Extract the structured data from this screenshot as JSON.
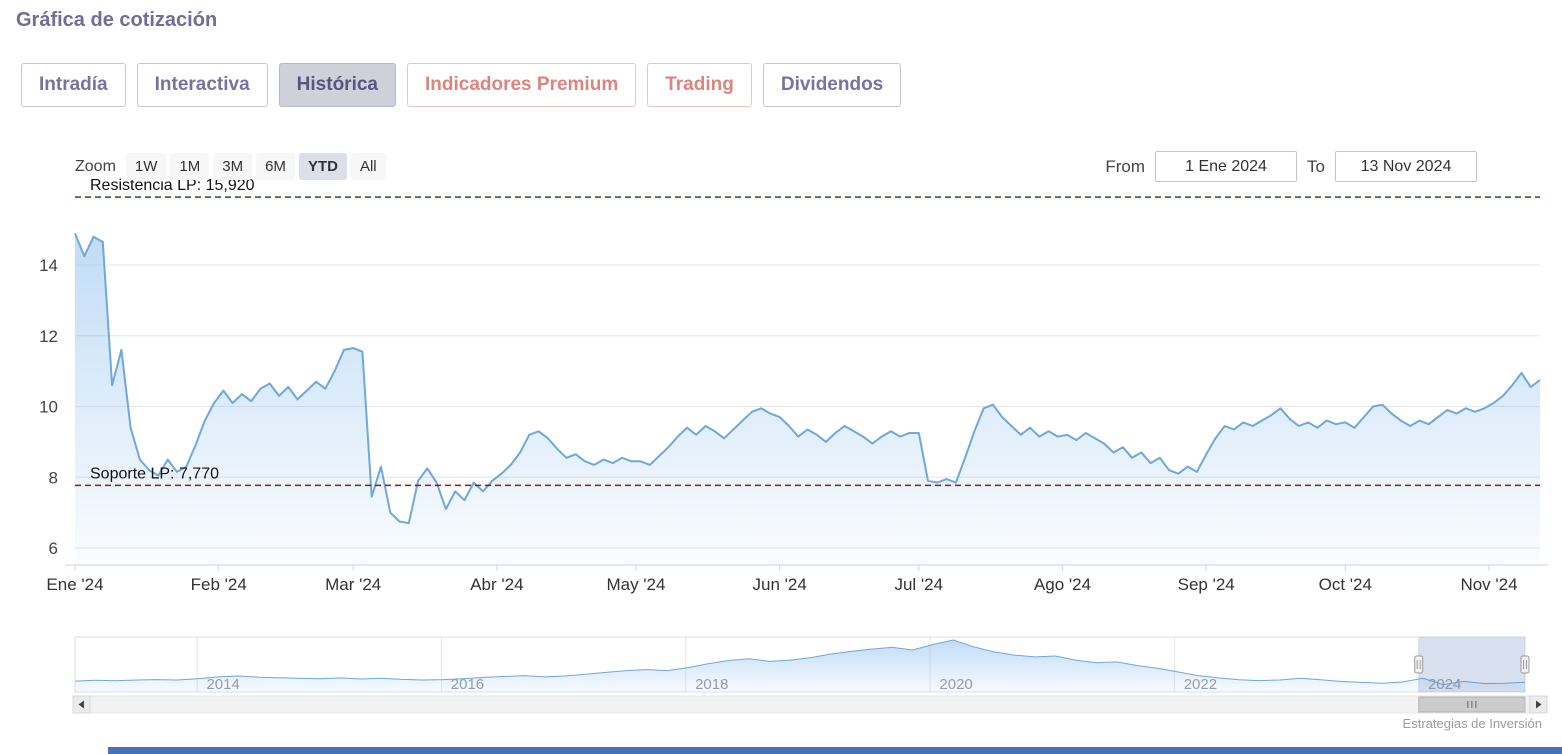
{
  "page": {
    "title": "Gráfica de cotización",
    "credit": "Estrategias de Inversión"
  },
  "tabs": [
    {
      "id": "intradia",
      "label": "Intradía",
      "variant": "purple",
      "active": false
    },
    {
      "id": "interactiva",
      "label": "Interactiva",
      "variant": "purple",
      "active": false
    },
    {
      "id": "historica",
      "label": "Histórica",
      "variant": "purple",
      "active": true
    },
    {
      "id": "indicadores-premium",
      "label": "Indicadores Premium",
      "variant": "salmon",
      "active": false
    },
    {
      "id": "trading",
      "label": "Trading",
      "variant": "salmon",
      "active": false
    },
    {
      "id": "dividendos",
      "label": "Dividendos",
      "variant": "purple",
      "active": false
    }
  ],
  "range_selector": {
    "zoom_label": "Zoom",
    "buttons": [
      {
        "label": "1W",
        "selected": false
      },
      {
        "label": "1M",
        "selected": false
      },
      {
        "label": "3M",
        "selected": false
      },
      {
        "label": "6M",
        "selected": false
      },
      {
        "label": "YTD",
        "selected": true
      },
      {
        "label": "All",
        "selected": false
      }
    ],
    "from_label": "From",
    "from_value": "1 Ene 2024",
    "to_label": "To",
    "to_value": "13 Nov 2024"
  },
  "colors": {
    "accent_purple": "#6e6e96",
    "accent_salmon": "#e0837c",
    "series_line": "#6fa8dc",
    "series_fill": "#7cb5ec",
    "navigator_mask": "rgba(102,133,194,0.25)",
    "bottom_strip": "#4472b8"
  },
  "chart_data": {
    "type": "area",
    "title": "",
    "xlabel": "",
    "ylabel": "",
    "grid": true,
    "ylim": [
      5.5,
      16.5
    ],
    "y_ticks": [
      6,
      8,
      10,
      12,
      14
    ],
    "x_tick_labels": [
      "Ene '24",
      "Feb '24",
      "Mar '24",
      "Abr '24",
      "May '24",
      "Jun '24",
      "Jul '24",
      "Ago '24",
      "Sep '24",
      "Oct '24",
      "Nov '24"
    ],
    "x_tick_days": [
      0,
      31,
      60,
      91,
      121,
      152,
      182,
      213,
      244,
      274,
      305
    ],
    "total_days": 316,
    "day_step": 2,
    "values": [
      14.9,
      14.25,
      14.8,
      14.65,
      10.6,
      11.6,
      9.4,
      8.5,
      8.2,
      8.05,
      8.5,
      8.15,
      8.3,
      8.9,
      9.6,
      10.1,
      10.45,
      10.1,
      10.35,
      10.15,
      10.5,
      10.65,
      10.3,
      10.55,
      10.2,
      10.45,
      10.7,
      10.5,
      11.0,
      11.6,
      11.65,
      11.55,
      7.45,
      8.3,
      7.0,
      6.75,
      6.7,
      7.9,
      8.25,
      7.85,
      7.1,
      7.6,
      7.35,
      7.85,
      7.6,
      7.9,
      8.1,
      8.35,
      8.7,
      9.2,
      9.3,
      9.1,
      8.8,
      8.55,
      8.65,
      8.45,
      8.35,
      8.5,
      8.4,
      8.55,
      8.45,
      8.45,
      8.35,
      8.6,
      8.85,
      9.15,
      9.4,
      9.2,
      9.45,
      9.3,
      9.1,
      9.35,
      9.6,
      9.85,
      9.95,
      9.8,
      9.7,
      9.45,
      9.15,
      9.35,
      9.2,
      9.0,
      9.25,
      9.45,
      9.3,
      9.15,
      8.95,
      9.15,
      9.3,
      9.15,
      9.25,
      9.25,
      7.9,
      7.85,
      7.95,
      7.85,
      8.55,
      9.3,
      9.95,
      10.05,
      9.7,
      9.45,
      9.2,
      9.4,
      9.15,
      9.3,
      9.15,
      9.2,
      9.05,
      9.25,
      9.1,
      8.95,
      8.7,
      8.85,
      8.55,
      8.7,
      8.4,
      8.55,
      8.2,
      8.1,
      8.3,
      8.15,
      8.65,
      9.1,
      9.45,
      9.35,
      9.55,
      9.45,
      9.6,
      9.75,
      9.95,
      9.65,
      9.45,
      9.55,
      9.4,
      9.6,
      9.5,
      9.55,
      9.4,
      9.7,
      10.0,
      10.05,
      9.8,
      9.6,
      9.45,
      9.6,
      9.5,
      9.7,
      9.9,
      9.8,
      9.95,
      9.85,
      9.95,
      10.1,
      10.3,
      10.6,
      10.95,
      10.55,
      10.75
    ],
    "annotations": [
      {
        "id": "resistencia",
        "label": "Resistencia LP: 15,920",
        "value": 15.92,
        "color": "#205020",
        "style": "dashed"
      },
      {
        "id": "soporte",
        "label": "Soporte LP: 7,770",
        "value": 7.77,
        "color": "#8b1a1a",
        "style": "dashed"
      }
    ],
    "navigator": {
      "type": "area",
      "year_start": 2013.0,
      "year_end": 2024.87,
      "tick_years": [
        2014,
        2016,
        2018,
        2020,
        2022,
        2024
      ],
      "selected_range_years": [
        2024.0,
        2024.87
      ],
      "values": [
        12,
        12.8,
        12.4,
        13.1,
        13.6,
        13.2,
        14.5,
        16.5,
        17.5,
        16.2,
        15.6,
        15.0,
        14.6,
        15.5,
        14.2,
        15.0,
        13.8,
        13.2,
        13.6,
        14.6,
        16.0,
        17.0,
        18.0,
        16.6,
        17.5,
        19.5,
        21.5,
        23.5,
        24.5,
        23.5,
        26.5,
        31,
        34.5,
        36.5,
        33.5,
        35,
        37.5,
        41.5,
        44.5,
        47,
        49,
        46,
        52,
        57,
        49.5,
        44,
        40.5,
        38.5,
        39.5,
        35,
        32,
        33,
        29,
        26,
        22,
        18,
        15.5,
        13.5,
        12.5,
        13.2,
        15,
        13.5,
        11.5,
        10.5,
        9.5,
        11,
        15,
        8.1,
        11.6,
        9.3,
        9.6,
        10.7
      ]
    }
  }
}
